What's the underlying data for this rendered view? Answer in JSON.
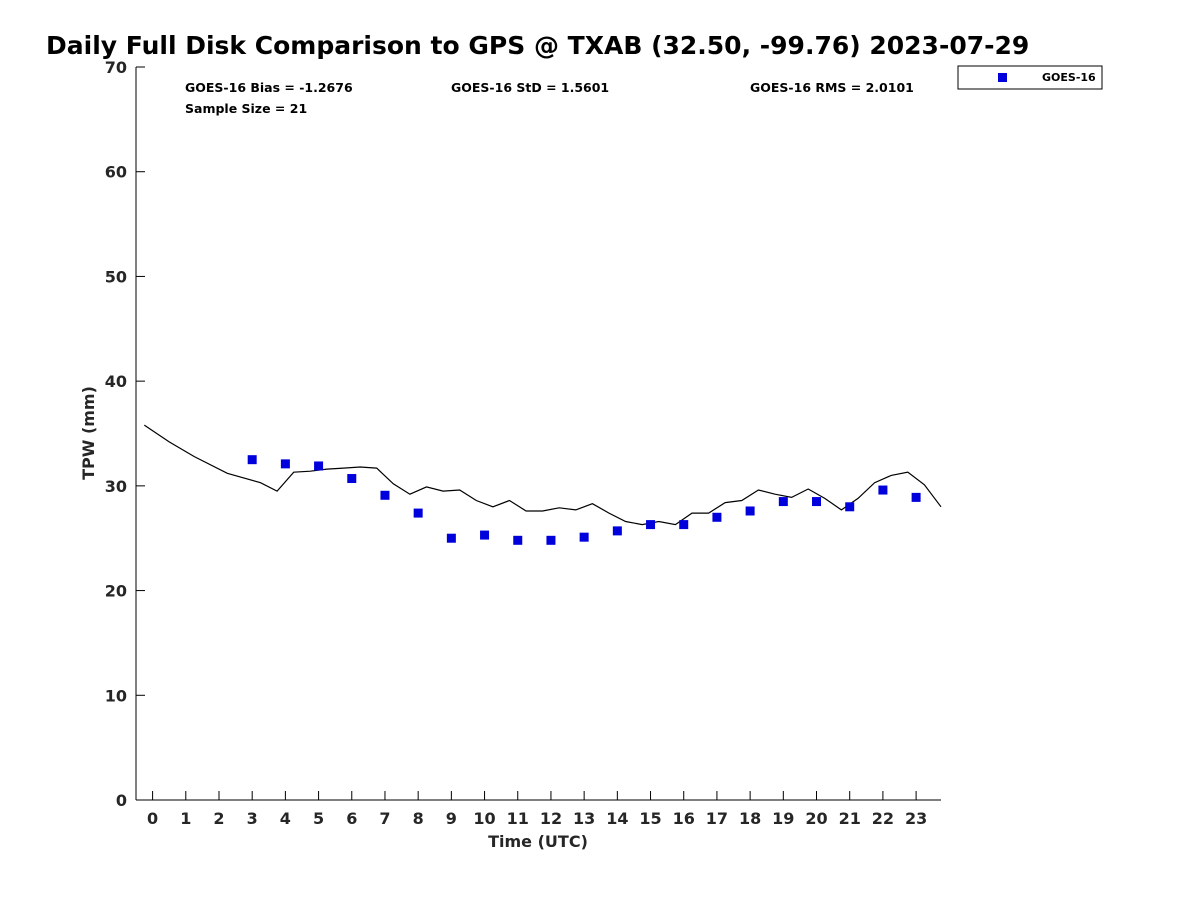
{
  "chart_data": {
    "type": "scatter",
    "title": "Daily Full Disk Comparison to GPS @ TXAB (32.50, -99.76) 2023-07-29",
    "xlabel": "Time (UTC)",
    "ylabel": "TPW (mm)",
    "xlim": [
      -0.5,
      23.75
    ],
    "ylim": [
      0,
      70
    ],
    "x_ticks": [
      "0",
      "1",
      "2",
      "3",
      "4",
      "5",
      "6",
      "7",
      "8",
      "9",
      "10",
      "11",
      "12",
      "13",
      "14",
      "15",
      "16",
      "17",
      "18",
      "19",
      "20",
      "21",
      "22",
      "23"
    ],
    "y_ticks": [
      "0",
      "10",
      "20",
      "30",
      "40",
      "50",
      "60",
      "70"
    ],
    "grid": false,
    "legend_position": "top-right (outside plot)",
    "stats": {
      "bias": "GOES-16 Bias = -1.2676",
      "std": "GOES-16 StD = 1.5601",
      "rms": "GOES-16 RMS = 2.0101",
      "sample": "Sample Size = 21"
    },
    "series": [
      {
        "name": "GOES-16",
        "kind": "scatter",
        "marker": "square",
        "color": "#0000dd",
        "x": [
          3,
          4,
          5,
          6,
          7,
          8,
          9,
          10,
          11,
          12,
          13,
          14,
          15,
          16,
          17,
          18,
          19,
          20,
          21,
          22,
          23
        ],
        "y": [
          32.5,
          32.1,
          31.9,
          30.7,
          29.1,
          27.4,
          25.0,
          25.3,
          24.8,
          24.8,
          25.1,
          25.7,
          26.3,
          26.3,
          27.0,
          27.6,
          28.5,
          28.5,
          28.0,
          29.6,
          28.9
        ]
      },
      {
        "kind": "line",
        "color": "#000000",
        "x": [
          -0.25,
          0.5,
          1.25,
          2.25,
          3.25,
          3.75,
          4.25,
          4.75,
          5.25,
          5.75,
          6.25,
          6.75,
          7.25,
          7.75,
          8.25,
          8.75,
          9.25,
          9.75,
          10.25,
          10.75,
          11.25,
          11.75,
          12.25,
          12.75,
          13.25,
          13.75,
          14.25,
          14.75,
          15.25,
          15.75,
          16.25,
          16.75,
          17.25,
          17.75,
          18.25,
          18.75,
          19.25,
          19.75,
          20.25,
          20.75,
          21.25,
          21.75,
          22.25,
          22.75,
          23.25,
          23.75
        ],
        "y": [
          35.8,
          34.2,
          32.8,
          31.2,
          30.3,
          29.5,
          31.3,
          31.4,
          31.6,
          31.7,
          31.8,
          31.7,
          30.2,
          29.2,
          29.9,
          29.5,
          29.6,
          28.6,
          28.0,
          28.6,
          27.6,
          27.6,
          27.9,
          27.7,
          28.3,
          27.4,
          26.6,
          26.3,
          26.6,
          26.3,
          27.4,
          27.4,
          28.4,
          28.6,
          29.6,
          29.2,
          28.9,
          29.7,
          28.8,
          27.7,
          28.8,
          30.3,
          31.0,
          31.3,
          30.1,
          28.0
        ]
      }
    ]
  }
}
